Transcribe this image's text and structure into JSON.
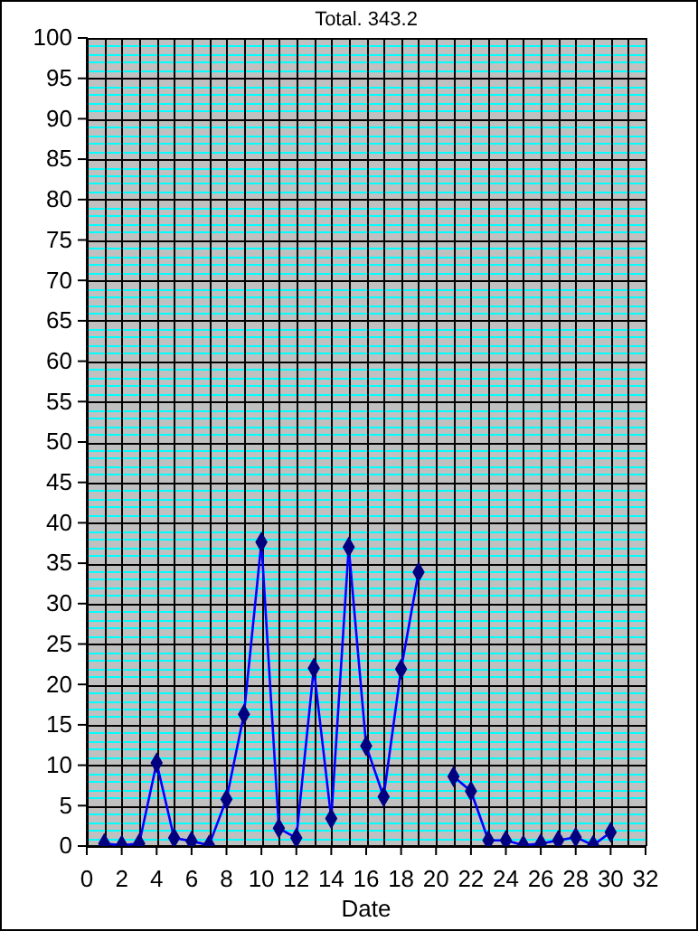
{
  "chart_data": {
    "type": "line",
    "title": "Total. 343.2",
    "xlabel": "Date",
    "x": [
      1,
      2,
      3,
      4,
      5,
      6,
      7,
      8,
      9,
      10,
      11,
      12,
      13,
      14,
      15,
      16,
      17,
      18,
      19,
      20,
      21,
      22,
      23,
      24,
      25,
      26,
      27,
      28,
      29,
      30
    ],
    "series": [
      {
        "color": "#0000ff",
        "values": [
          0.3,
          0.1,
          0.3,
          10.3,
          1.0,
          0.6,
          0.1,
          5.8,
          16.3,
          37.6,
          2.2,
          1.0,
          22.0,
          3.4,
          37.0,
          12.4,
          6.1,
          21.9,
          33.9,
          null,
          8.6,
          6.8,
          0.7,
          0.7,
          0.1,
          0.3,
          0.7,
          1.1,
          0.1,
          1.7
        ]
      }
    ],
    "marker": "diamond",
    "grid": true,
    "xlim": [
      0,
      32
    ],
    "xticks": [
      0,
      2,
      4,
      6,
      8,
      10,
      12,
      14,
      16,
      18,
      20,
      22,
      24,
      26,
      28,
      30,
      32
    ],
    "ylim": [
      0,
      100
    ],
    "yticks": [
      0,
      {
        "value": 1,
        "label": null
      },
      {
        "value": 2,
        "label": null
      },
      {
        "value": 3,
        "label": null
      },
      {
        "value": 4,
        "label": null
      },
      5,
      {
        "value": 6,
        "label": null
      },
      {
        "value": 7,
        "label": null
      },
      {
        "value": 8,
        "label": null
      },
      {
        "value": 9,
        "label": null
      },
      10,
      {
        "value": 11,
        "label": null
      },
      {
        "value": 12,
        "label": null
      },
      {
        "value": 13,
        "label": null
      },
      {
        "value": 14,
        "label": null
      },
      15,
      {
        "value": 16,
        "label": null
      },
      {
        "value": 17,
        "label": null
      },
      {
        "value": 18,
        "label": null
      },
      {
        "value": 19,
        "label": null
      },
      20,
      {
        "value": 21,
        "label": null
      },
      {
        "value": 22,
        "label": null
      },
      {
        "value": 23,
        "label": null
      },
      {
        "value": 24,
        "label": null
      },
      25,
      {
        "value": 26,
        "label": null
      },
      {
        "value": 27,
        "label": null
      },
      {
        "value": 28,
        "label": null
      },
      {
        "value": 29,
        "label": null
      },
      30,
      {
        "value": 31,
        "label": null
      },
      {
        "value": 32,
        "label": null
      },
      {
        "value": 33,
        "label": null
      },
      {
        "value": 34,
        "label": null
      },
      35,
      {
        "value": 36,
        "label": null
      },
      {
        "value": 37,
        "label": null
      },
      {
        "value": 38,
        "label": null
      },
      {
        "value": 39,
        "label": null
      },
      40,
      {
        "value": 41,
        "label": null
      },
      {
        "value": 42,
        "label": null
      },
      {
        "value": 43,
        "label": null
      },
      {
        "value": 44,
        "label": null
      },
      45,
      {
        "value": 46,
        "label": null
      },
      {
        "value": 47,
        "label": null
      },
      {
        "value": 48,
        "label": null
      },
      {
        "value": 49,
        "label": null
      },
      50,
      {
        "value": 51,
        "label": null
      },
      {
        "value": 52,
        "label": null
      },
      {
        "value": 53,
        "label": null
      },
      {
        "value": 54,
        "label": null
      },
      55,
      {
        "value": 56,
        "label": null
      },
      {
        "value": 57,
        "label": null
      },
      {
        "value": 58,
        "label": null
      },
      {
        "value": 59,
        "label": null
      },
      60,
      {
        "value": 61,
        "label": null
      },
      {
        "value": 62,
        "label": null
      },
      {
        "value": 63,
        "label": null
      },
      {
        "value": 64,
        "label": null
      },
      65,
      {
        "value": 66,
        "label": null
      },
      {
        "value": 67,
        "label": null
      },
      {
        "value": 68,
        "label": null
      },
      {
        "value": 69,
        "label": null
      },
      70,
      {
        "value": 71,
        "label": null
      },
      {
        "value": 72,
        "label": null
      },
      {
        "value": 73,
        "label": null
      },
      {
        "value": 74,
        "label": null
      },
      75,
      {
        "value": 76,
        "label": null
      },
      {
        "value": 77,
        "label": null
      },
      {
        "value": 78,
        "label": null
      },
      {
        "value": 79,
        "label": null
      },
      80,
      {
        "value": 81,
        "label": null
      },
      {
        "value": 82,
        "label": null
      },
      {
        "value": 83,
        "label": null
      },
      {
        "value": 84,
        "label": null
      },
      85,
      {
        "value": 86,
        "label": null
      },
      {
        "value": 87,
        "label": null
      },
      {
        "value": 88,
        "label": null
      },
      {
        "value": 89,
        "label": null
      },
      90,
      {
        "value": 91,
        "label": null
      },
      {
        "value": 92,
        "label": null
      },
      {
        "value": 93,
        "label": null
      },
      {
        "value": 94,
        "label": null
      },
      95,
      {
        "value": 96,
        "label": null
      },
      {
        "value": 97,
        "label": null
      },
      {
        "value": 98,
        "label": null
      },
      {
        "value": 99,
        "label": null
      },
      100
    ]
  }
}
